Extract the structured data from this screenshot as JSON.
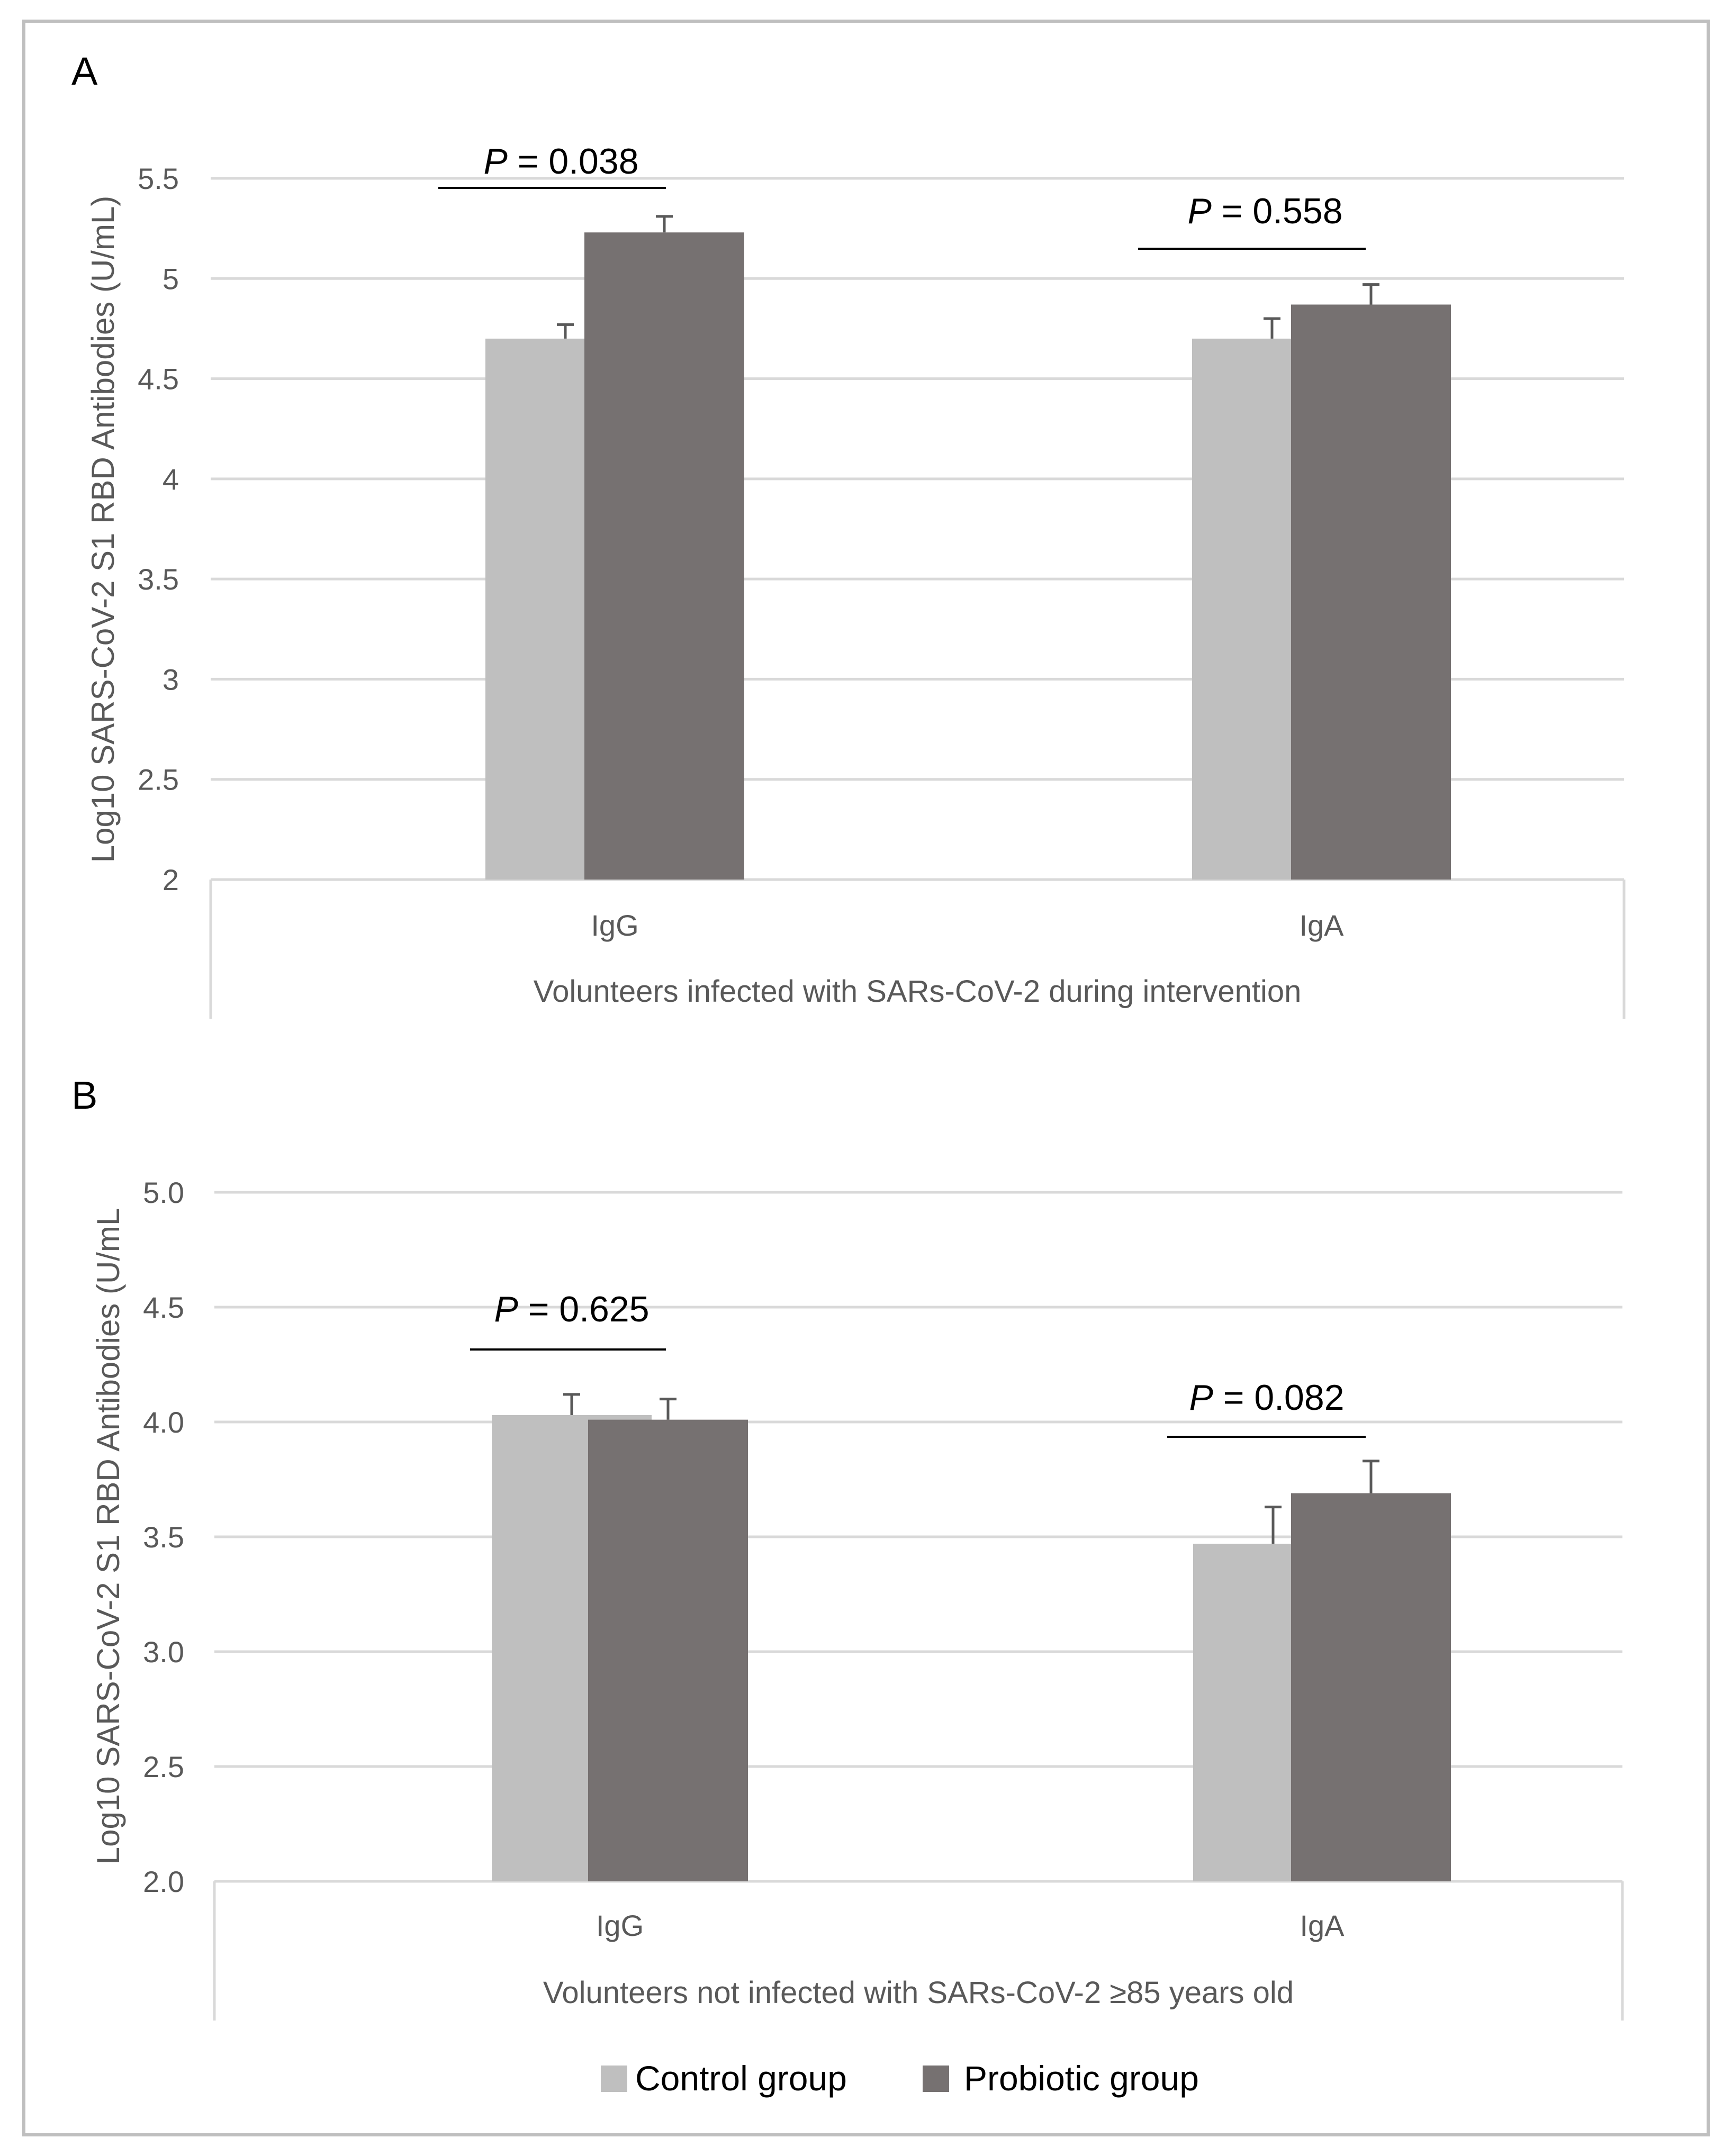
{
  "chart_data": [
    {
      "type": "bar",
      "panel_label": "A",
      "categories": [
        "IgG",
        "IgA"
      ],
      "xlabel": "Volunteers infected with SARs-CoV-2 during intervention",
      "ylabel": "Log10 SARS-CoV-2 S1 RBD Antibodies (U/mL)",
      "ylim": [
        2,
        5.5
      ],
      "yticks": [
        "2",
        "2.5",
        "3",
        "3.5",
        "4",
        "4.5",
        "5",
        "5.5"
      ],
      "grid": true,
      "series": [
        {
          "name": "Control group",
          "values": [
            4.7,
            4.7
          ],
          "errors": [
            0.07,
            0.1
          ]
        },
        {
          "name": "Probiotic group",
          "values": [
            5.23,
            4.87
          ],
          "errors": [
            0.08,
            0.1
          ]
        }
      ],
      "annotations": [
        {
          "text": "P = 0.038",
          "prefix": "P",
          "suffix": " = 0.038",
          "category": "IgG"
        },
        {
          "text": "P = 0.558",
          "prefix": "P",
          "suffix": " = 0.558",
          "category": "IgA"
        }
      ]
    },
    {
      "type": "bar",
      "panel_label": "B",
      "categories": [
        "IgG",
        "IgA"
      ],
      "xlabel": "Volunteers not infected with SARs-CoV-2 ≥85 years old",
      "ylabel": "Log10 SARS-CoV-2 S1 RBD Antibodies (U/mL",
      "ylim": [
        2,
        5
      ],
      "yticks": [
        "2.0",
        "2.5",
        "3.0",
        "3.5",
        "4.0",
        "4.5",
        "5.0"
      ],
      "grid": true,
      "series": [
        {
          "name": "Control group",
          "values": [
            4.03,
            3.47
          ],
          "errors": [
            0.09,
            0.16
          ]
        },
        {
          "name": "Probiotic group",
          "values": [
            4.01,
            3.69
          ],
          "errors": [
            0.09,
            0.14
          ]
        }
      ],
      "annotations": [
        {
          "text": "P = 0.625",
          "prefix": "P",
          "suffix": " = 0.625",
          "category": "IgG"
        },
        {
          "text": "P = 0.082",
          "prefix": "P",
          "suffix": " = 0.082",
          "category": "IgA"
        }
      ]
    }
  ],
  "legend": {
    "position": "bottom",
    "items": [
      {
        "label": "Control group",
        "color": "#bfbfbf"
      },
      {
        "label": "Probiotic group",
        "color": "#767171"
      }
    ]
  },
  "colors": {
    "control": "#bfbfbf",
    "probiotic": "#767171",
    "grid": "#d9d9d9",
    "axis_text": "#595959"
  }
}
